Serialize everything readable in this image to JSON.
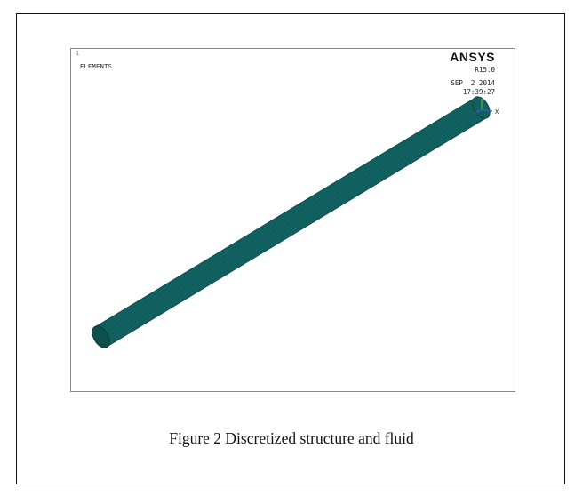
{
  "figure": {
    "corner_mark": "1",
    "plot_label": "ELEMENTS",
    "software": "ANSYS",
    "version": "R15.0",
    "date": "SEP  2 2014",
    "time": "17:39:27",
    "axis_label": "X",
    "mesh_color": "#0d5a5a",
    "mesh_line_color": "#2a8080",
    "axis_green": "#4cb84c",
    "axis_blue": "#3a5fc8",
    "caption": "Figure 2 Discretized structure and fluid"
  }
}
